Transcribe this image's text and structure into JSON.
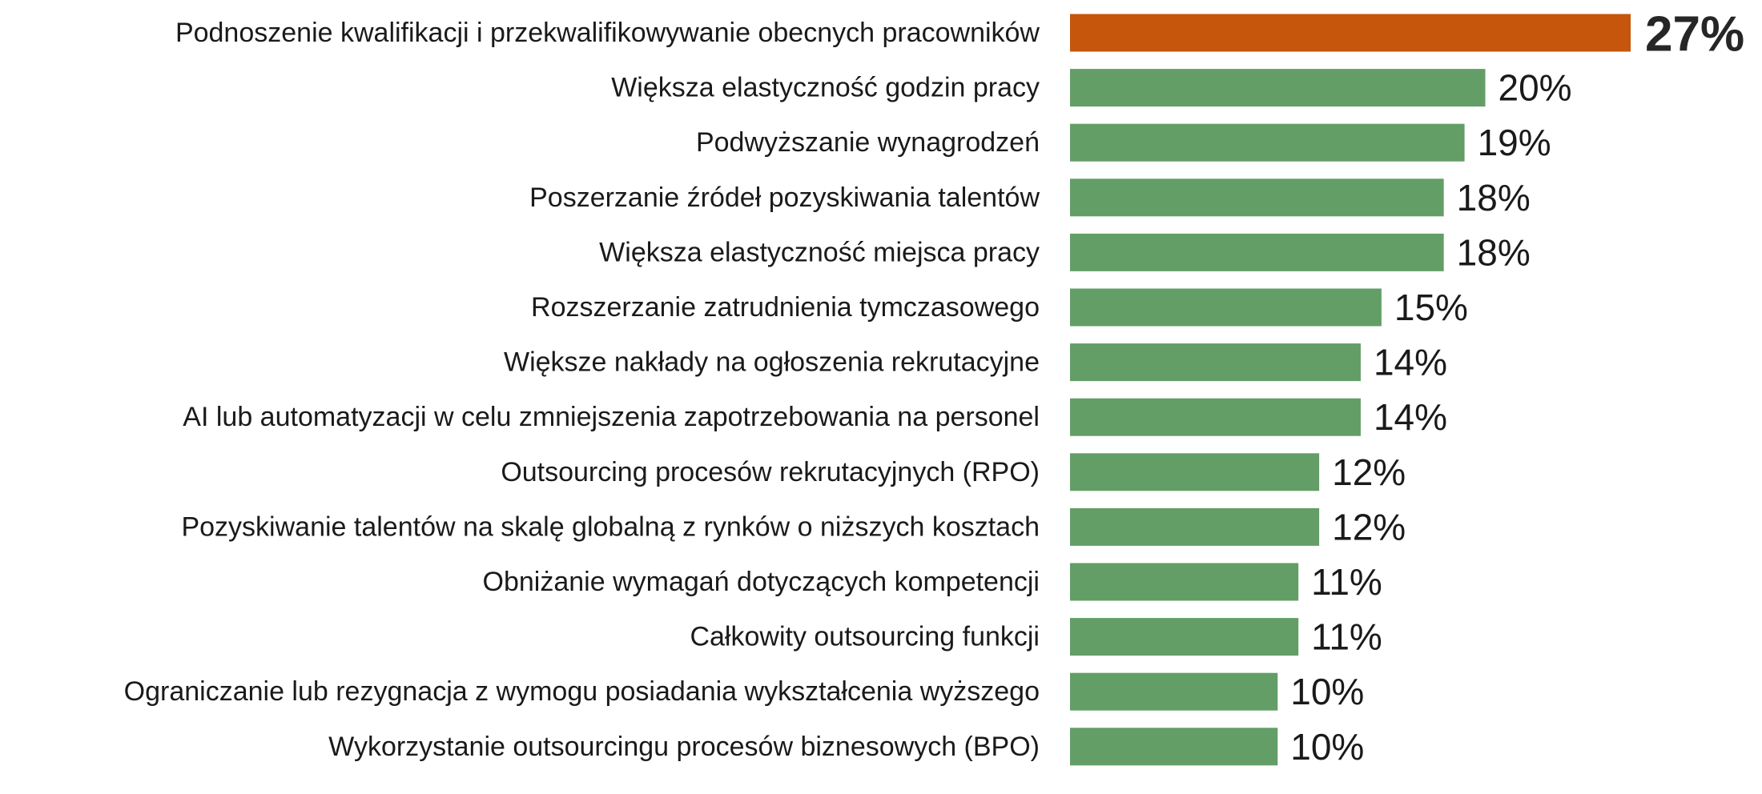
{
  "chart_data": {
    "type": "bar",
    "orientation": "horizontal",
    "title": "",
    "xlabel": "",
    "ylabel": "",
    "unit": "%",
    "xlim": [
      0,
      27
    ],
    "grid": false,
    "legend": "none",
    "colors": {
      "highlight": "#c5560c",
      "default": "#629e66"
    },
    "categories": [
      "Podnoszenie kwalifikacji i przekwalifikowywanie obecnych pracowników",
      "Większa elastyczność godzin pracy",
      "Podwyższanie wynagrodzeń",
      "Poszerzanie źródeł pozyskiwania talentów",
      "Większa elastyczność miejsca pracy",
      "Rozszerzanie zatrudnienia tymczasowego",
      "Większe nakłady na ogłoszenia rekrutacyjne",
      "AI lub automatyzacji w celu zmniejszenia zapotrzebowania na personel",
      "Outsourcing procesów rekrutacyjnych (RPO)",
      "Pozyskiwanie talentów na skalę globalną z rynków o niższych kosztach",
      "Obniżanie wymagań dotyczących kompetencji",
      "Całkowity outsourcing funkcji",
      "Ograniczanie lub rezygnacja z wymogu posiadania wykształcenia wyższego",
      "Wykorzystanie outsourcingu procesów biznesowych (BPO)"
    ],
    "values": [
      27,
      20,
      19,
      18,
      18,
      15,
      14,
      14,
      12,
      12,
      11,
      11,
      10,
      10
    ],
    "value_labels": [
      "27%",
      "20%",
      "19%",
      "18%",
      "18%",
      "15%",
      "14%",
      "14%",
      "12%",
      "12%",
      "11%",
      "11%",
      "10%",
      "10%"
    ],
    "highlight_index": 0
  }
}
